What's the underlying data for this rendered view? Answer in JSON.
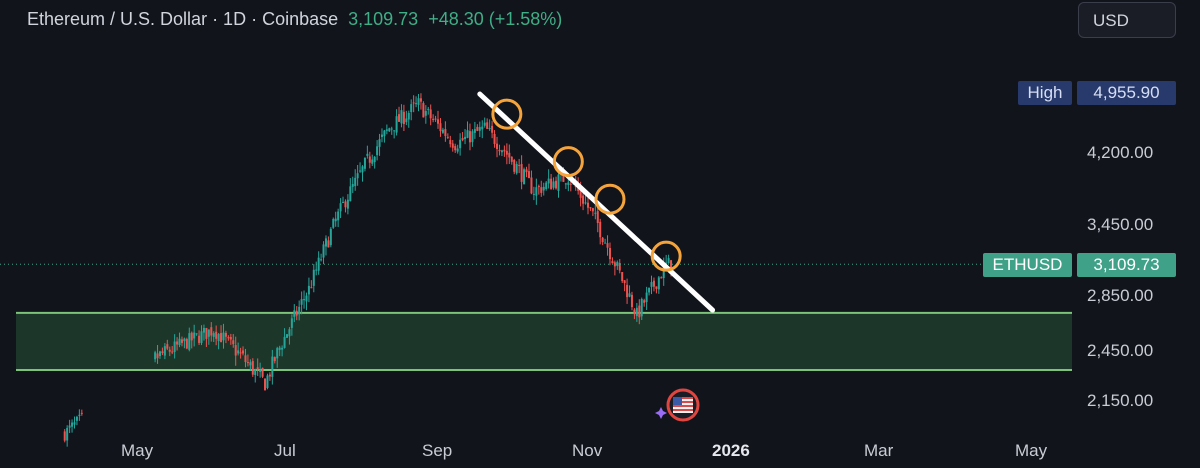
{
  "header": {
    "symbol": "Ethereum / U.S. Dollar · 1D · Coinbase",
    "price": "3,109.73",
    "change": "+48.30 (+1.58%)"
  },
  "currency_button": "USD",
  "high_tag": {
    "label": "High",
    "value": "4,955.90"
  },
  "last_tag": {
    "label": "ETHUSD",
    "value": "3,109.73"
  },
  "y_ticks": [
    "4,200.00",
    "3,450.00",
    "2,850.00",
    "2,450.00",
    "2,150.00"
  ],
  "x_ticks": [
    "May",
    "Jul",
    "Sep",
    "Nov",
    "2026",
    "Mar",
    "May"
  ],
  "colors": {
    "up": "#26a69a",
    "down": "#ef5350",
    "zone": "#7cc47a",
    "trend": "#ffffff",
    "circle": "#f5a43c"
  },
  "chart_data": {
    "type": "candlestick",
    "symbol": "ETHUSD",
    "timeframe": "1D",
    "last_price": 3109.73,
    "high": 4955.9,
    "support_zone": [
      2330,
      2720
    ],
    "trendline": [
      {
        "x": "2025-09-18",
        "y": 4930
      },
      {
        "x": "2025-12-22",
        "y": 2740
      }
    ],
    "touches": [
      "2025-09-29",
      "2025-10-24",
      "2025-11-10",
      "2025-12-03"
    ],
    "series": [
      {
        "x": "2025-04-01",
        "close": 1950
      },
      {
        "x": "2025-05-08",
        "close": 2400
      },
      {
        "x": "2025-06-01",
        "close": 2600
      },
      {
        "x": "2025-06-22",
        "close": 2250
      },
      {
        "x": "2025-07-10",
        "close": 2900
      },
      {
        "x": "2025-07-25",
        "close": 3700
      },
      {
        "x": "2025-08-12",
        "close": 4500
      },
      {
        "x": "2025-08-24",
        "close": 4800
      },
      {
        "x": "2025-09-08",
        "close": 4300
      },
      {
        "x": "2025-09-20",
        "close": 4500
      },
      {
        "x": "2025-10-10",
        "close": 3800
      },
      {
        "x": "2025-10-24",
        "close": 3950
      },
      {
        "x": "2025-11-04",
        "close": 3500
      },
      {
        "x": "2025-11-21",
        "close": 2700
      },
      {
        "x": "2025-12-03",
        "close": 3100
      },
      {
        "x": "2025-12-05",
        "close": 3109.73
      }
    ]
  }
}
